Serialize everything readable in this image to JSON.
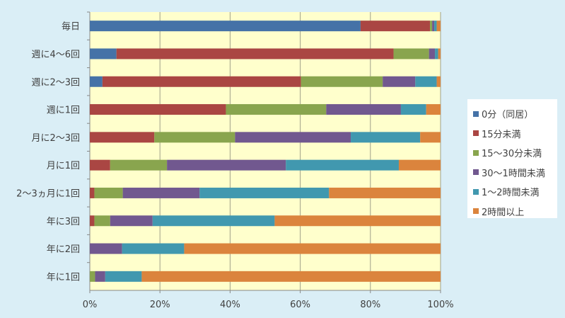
{
  "chart_data": {
    "type": "bar",
    "orientation": "horizontal",
    "stacked": "percent",
    "categories": [
      "毎日",
      "週に4～6回",
      "週に2～3回",
      "週に1回",
      "月に2～3回",
      "月に1回",
      "2～3ヵ月に1回",
      "年に3回",
      "年に2回",
      "年に1回"
    ],
    "series": [
      {
        "name": "0分（同居）",
        "color": "#4572a7",
        "values": [
          77.2,
          7.6,
          3.6,
          0,
          0,
          0,
          0,
          0,
          0,
          0
        ]
      },
      {
        "name": "15分未満",
        "color": "#aa4643",
        "values": [
          19.8,
          79.0,
          56.6,
          38.8,
          18.4,
          5.8,
          1.3,
          1.3,
          0,
          0
        ]
      },
      {
        "name": "15～30分未満",
        "color": "#89a54e",
        "values": [
          0.6,
          10.1,
          23.3,
          28.6,
          23.0,
          16.2,
          8.1,
          4.5,
          0,
          1.5
        ]
      },
      {
        "name": "30～1時間未満",
        "color": "#71588f",
        "values": [
          0.6,
          1.7,
          9.3,
          21.3,
          33.0,
          33.9,
          21.9,
          12.1,
          9.2,
          2.9
        ]
      },
      {
        "name": "1～2時間未満",
        "color": "#4198af",
        "values": [
          0.7,
          0.9,
          6.1,
          7.2,
          19.8,
          32.2,
          36.9,
          34.8,
          17.7,
          10.4
        ]
      },
      {
        "name": "2時間以上",
        "color": "#db843d",
        "values": [
          1.1,
          0.7,
          1.1,
          4.1,
          5.8,
          11.9,
          31.8,
          47.3,
          73.1,
          85.2
        ]
      }
    ],
    "x_ticks": [
      "0%",
      "20%",
      "40%",
      "60%",
      "80%",
      "100%"
    ],
    "xlim": [
      0,
      100
    ],
    "grid": true,
    "legend_position": "right",
    "plot_background": "#ffffcc"
  }
}
